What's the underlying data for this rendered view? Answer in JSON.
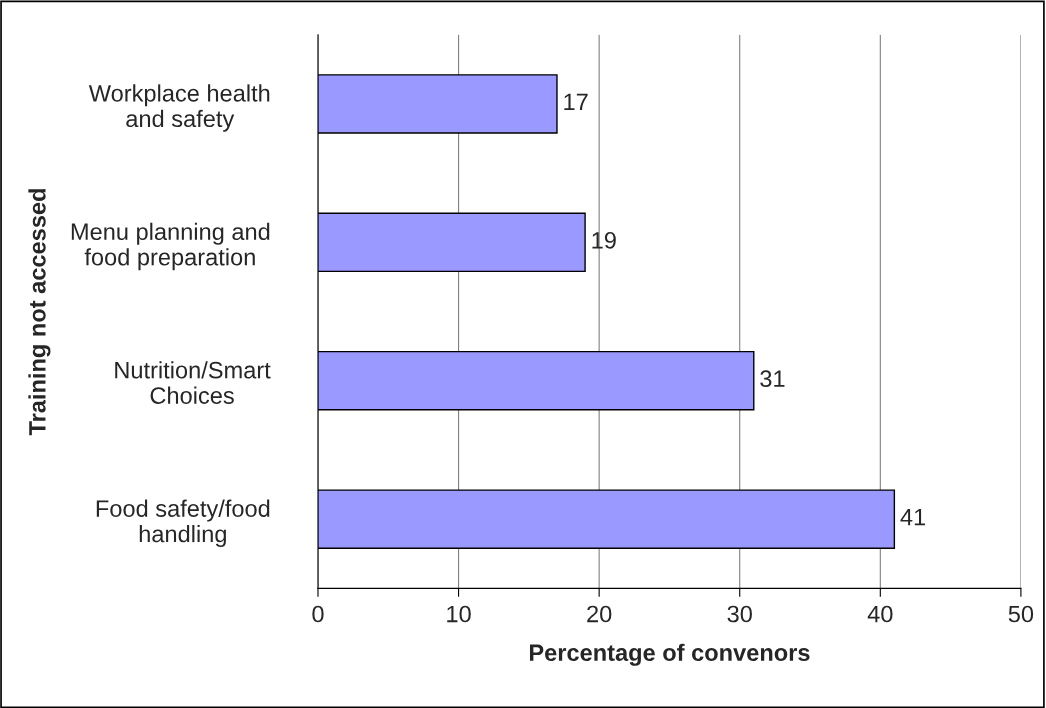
{
  "chart_data": {
    "type": "bar",
    "orientation": "horizontal",
    "xlabel": "Percentage of convenors",
    "ylabel": "Training not accessed",
    "categories": [
      "Workplace health\nand safety",
      "Menu planning and\nfood preparation",
      "Nutrition/Smart\nChoices",
      "Food safety/food\nhandling"
    ],
    "values": [
      17,
      19,
      31,
      41
    ],
    "color": "#9999ff",
    "xlim": [
      0,
      50
    ],
    "xticks": [
      0,
      10,
      20,
      30,
      40,
      50
    ],
    "grid": "x",
    "data_labels": true,
    "legend": false
  }
}
